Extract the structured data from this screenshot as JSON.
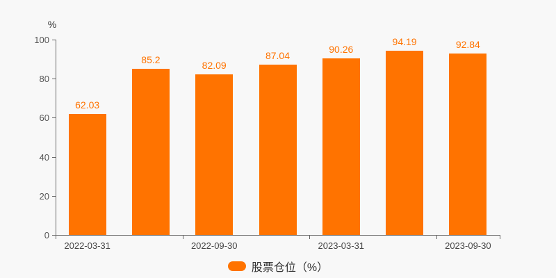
{
  "chart": {
    "colors": {
      "bar": "#FF7300",
      "value_label": "#FF7300",
      "axis": "#666666",
      "y_tick_text": "#555555",
      "x_tick_text": "#444444",
      "background": "#F8F8F8",
      "legend_text": "#333333"
    }
  },
  "chart_data": {
    "type": "bar",
    "title": "",
    "ylabel": "%",
    "xlabel": "",
    "grid": false,
    "legend_position": "bottom",
    "series": [
      {
        "name": "股票仓位（%）",
        "values": [
          62.03,
          85.2,
          82.09,
          87.04,
          90.26,
          94.19,
          92.84
        ]
      }
    ],
    "num_bars": 7,
    "x_tick_labels": [
      "2022-03-31",
      "2022-09-30",
      "2023-03-31",
      "2023-09-30"
    ],
    "x_tick_label_positions": [
      0,
      2,
      4,
      6
    ],
    "x_axis_boundary_ticks": [
      0,
      2,
      4,
      6,
      7
    ],
    "yticks": [
      0,
      20,
      40,
      60,
      80,
      100
    ],
    "ylim": [
      0,
      100
    ]
  }
}
